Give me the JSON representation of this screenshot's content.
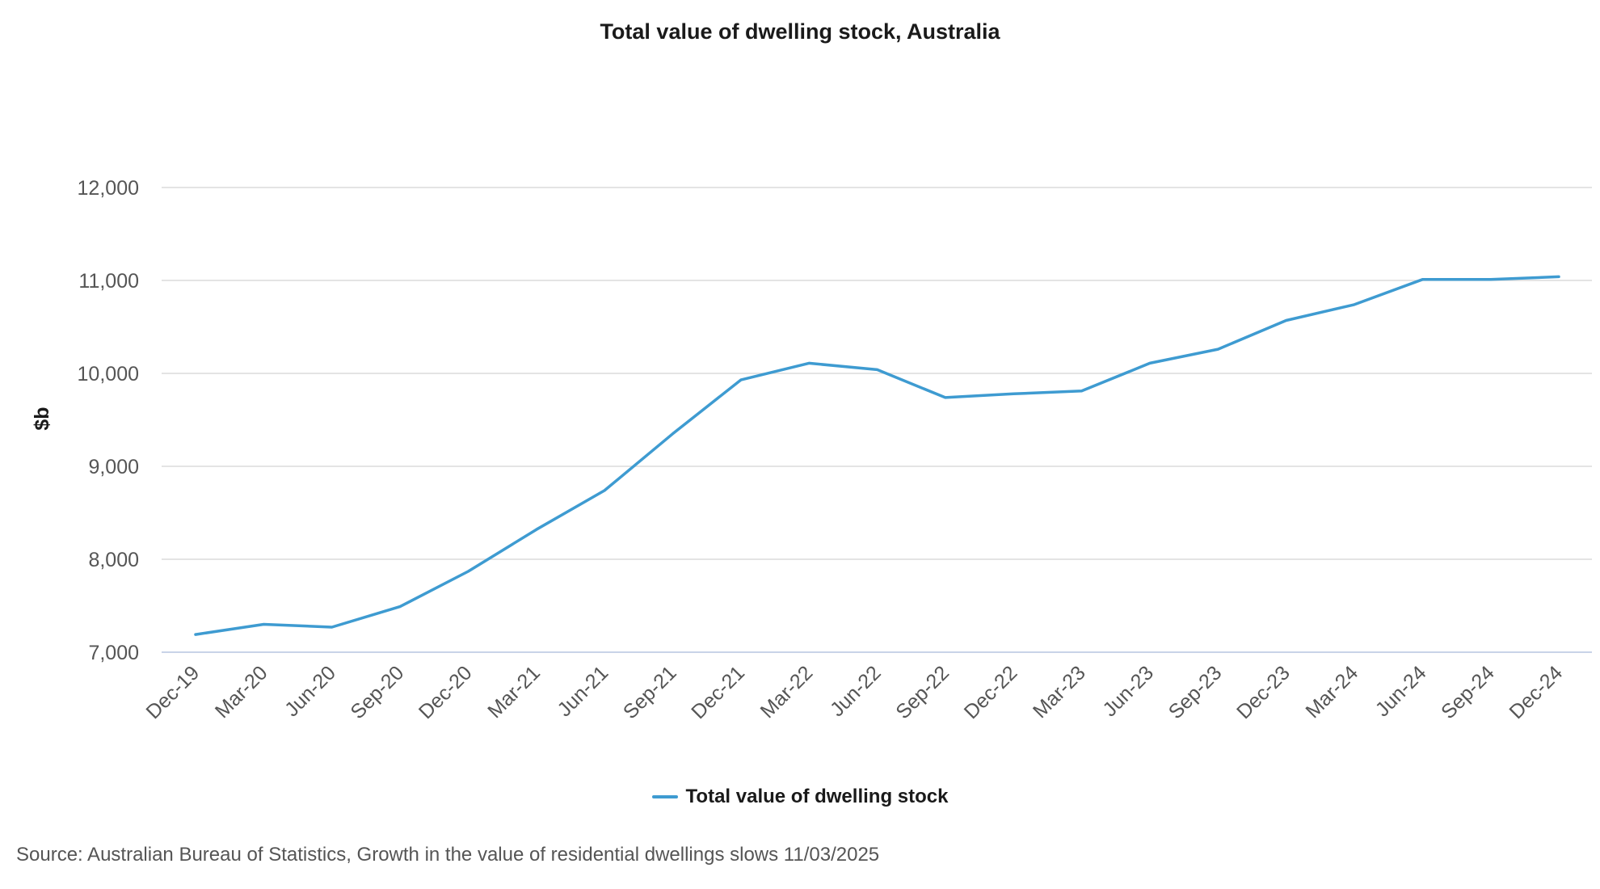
{
  "chart_data": {
    "type": "line",
    "title": "Total value of dwelling stock, Australia",
    "xlabel": "",
    "ylabel": "$b",
    "ylim": [
      7000,
      12000
    ],
    "yticks": [
      7000,
      8000,
      9000,
      10000,
      11000,
      12000
    ],
    "ytick_labels": [
      "7,000",
      "8,000",
      "9,000",
      "10,000",
      "11,000",
      "12,000"
    ],
    "categories": [
      "Dec-19",
      "Mar-20",
      "Jun-20",
      "Sep-20",
      "Dec-20",
      "Mar-21",
      "Jun-21",
      "Sep-21",
      "Dec-21",
      "Mar-22",
      "Jun-22",
      "Sep-22",
      "Dec-22",
      "Mar-23",
      "Jun-23",
      "Sep-23",
      "Dec-23",
      "Mar-24",
      "Jun-24",
      "Sep-24",
      "Dec-24"
    ],
    "series": [
      {
        "name": "Total value of dwelling stock",
        "color": "#3e9bd1",
        "values": [
          7190,
          7300,
          7270,
          7490,
          7870,
          8320,
          8740,
          9350,
          9930,
          10110,
          10040,
          9740,
          9780,
          9810,
          10110,
          10260,
          10570,
          10740,
          11010,
          11010,
          11040
        ]
      }
    ],
    "grid": true,
    "grid_color": "#dcdcdc",
    "axis_color": "#c8d3e8",
    "legend": "bottom-center"
  },
  "source_text": "Source: Australian Bureau of Statistics, Growth in the value of residential dwellings slows 11/03/2025"
}
